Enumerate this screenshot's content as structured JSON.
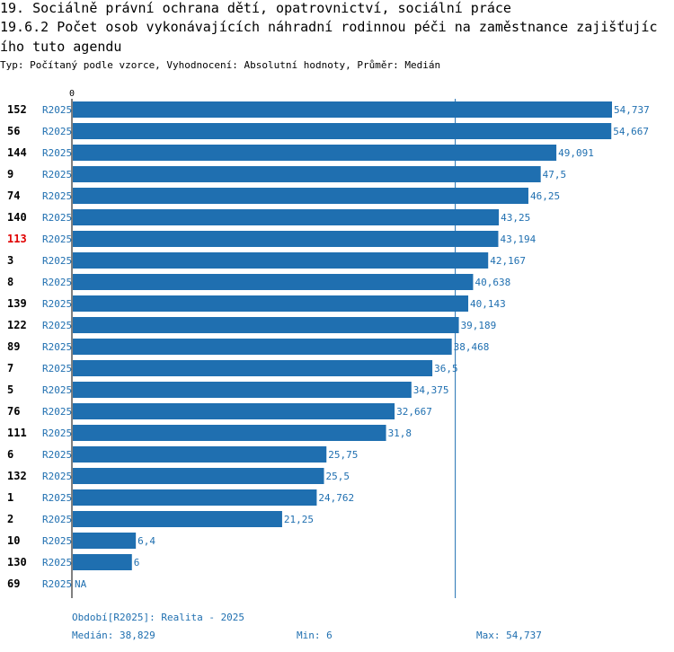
{
  "header": {
    "line1": "19. Sociálně právní ochrana dětí, opatrovnictví, sociální práce",
    "line2": "19.6.2 Počet osob vykonávajících náhradní rodinnou péči na zaměstnance zajišťujíc",
    "line3": "ího tuto agendu",
    "type_line": "Typ: Počítaný podle vzorce, Vyhodnocení: Absolutní hodnoty, Průměr: Medián"
  },
  "chart_data": {
    "type": "bar",
    "orientation": "horizontal",
    "x_tick_label": "0",
    "xlim": [
      0,
      54.737
    ],
    "period_label": "R2025",
    "highlight_category": "113",
    "categories": [
      "152",
      "56",
      "144",
      "9",
      "74",
      "140",
      "113",
      "3",
      "8",
      "139",
      "122",
      "89",
      "7",
      "5",
      "76",
      "111",
      "6",
      "132",
      "1",
      "2",
      "10",
      "130",
      "69"
    ],
    "values": [
      54.737,
      54.667,
      49.091,
      47.5,
      46.25,
      43.25,
      43.194,
      42.167,
      40.638,
      40.143,
      39.189,
      38.468,
      36.5,
      34.375,
      32.667,
      31.8,
      25.75,
      25.5,
      24.762,
      21.25,
      6.4,
      6,
      null
    ],
    "value_labels": [
      "54,737",
      "54,667",
      "49,091",
      "47,5",
      "46,25",
      "43,25",
      "43,194",
      "42,167",
      "40,638",
      "40,143",
      "39,189",
      "38,468",
      "36,5",
      "34,375",
      "32,667",
      "31,8",
      "25,75",
      "25,5",
      "24,762",
      "21,25",
      "6,4",
      "6",
      "NA"
    ],
    "median": 38.829,
    "colors": {
      "bar": "#1f6fb0",
      "text": "#1f6fb0",
      "highlight": "#e00000"
    }
  },
  "footer": {
    "period": "Období[R2025]: Realita - 2025",
    "median": "Medián: 38,829",
    "min": "Min: 6",
    "max": "Max: 54,737"
  }
}
